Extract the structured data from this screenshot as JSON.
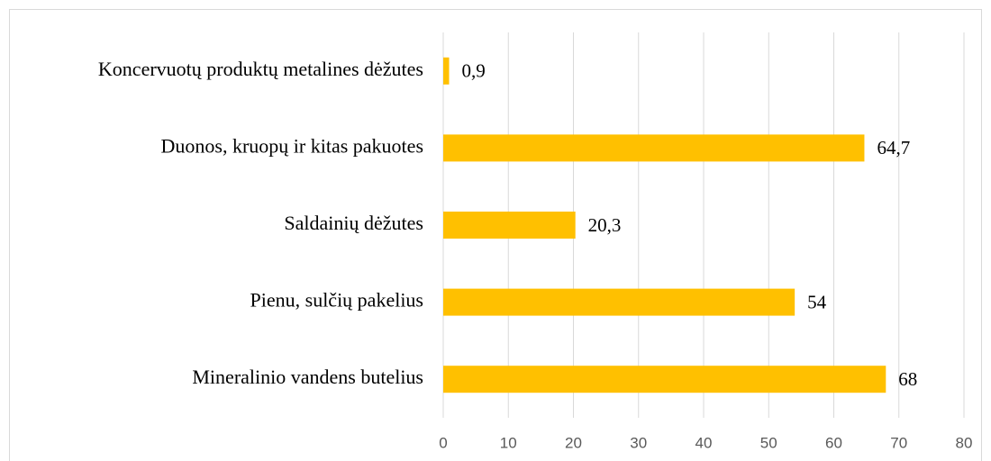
{
  "chart_data": {
    "type": "barh",
    "categories": [
      "Koncervuotų produktų metalines dėžutes",
      "Duonos, kruopų ir kitas pakuotes",
      "Saldainių dėžutes",
      "Pienu, sulčių pakelius",
      "Mineralinio vandens butelius"
    ],
    "values": [
      0.9,
      64.7,
      20.3,
      54,
      68
    ],
    "value_labels": [
      "0,9",
      "64,7",
      "20,3",
      "54",
      "68"
    ],
    "color": "#ffc000",
    "xlim": [
      0,
      80
    ],
    "xticks": [
      0,
      10,
      20,
      30,
      40,
      50,
      60,
      70,
      80
    ],
    "grid": true
  }
}
